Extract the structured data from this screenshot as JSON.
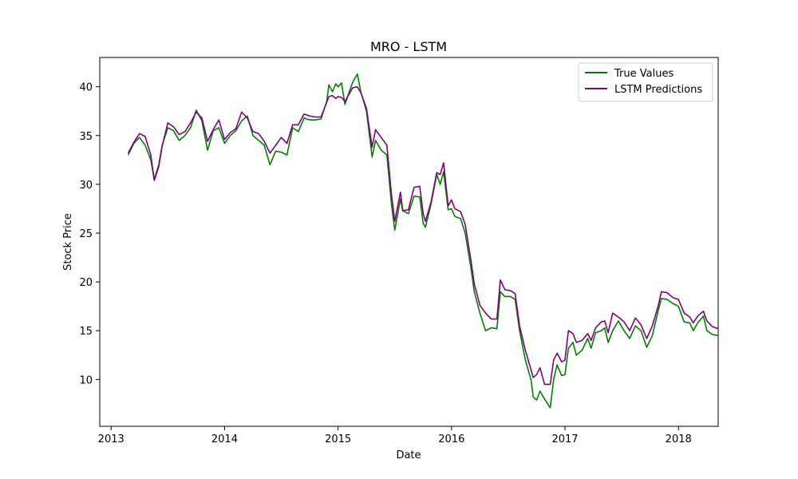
{
  "chart_data": {
    "type": "line",
    "title": "MRO - LSTM",
    "xlabel": "Date",
    "ylabel": "Stock Price",
    "xlim": [
      2012.9,
      2018.35
    ],
    "ylim": [
      5.2,
      43.0
    ],
    "x_ticks": [
      {
        "value": 2013,
        "label": "2013"
      },
      {
        "value": 2014,
        "label": "2014"
      },
      {
        "value": 2015,
        "label": "2015"
      },
      {
        "value": 2016,
        "label": "2016"
      },
      {
        "value": 2017,
        "label": "2017"
      },
      {
        "value": 2018,
        "label": "2018"
      }
    ],
    "y_ticks": [
      10,
      15,
      20,
      25,
      30,
      35,
      40
    ],
    "grid": false,
    "legend_position": "top-right",
    "series": [
      {
        "name": "True Values",
        "color": "#008000",
        "points": [
          [
            2013.15,
            33.0
          ],
          [
            2013.2,
            34.2
          ],
          [
            2013.25,
            34.8
          ],
          [
            2013.3,
            34.0
          ],
          [
            2013.35,
            32.5
          ],
          [
            2013.38,
            30.5
          ],
          [
            2013.42,
            32.0
          ],
          [
            2013.45,
            34.0
          ],
          [
            2013.5,
            35.8
          ],
          [
            2013.55,
            35.5
          ],
          [
            2013.6,
            34.5
          ],
          [
            2013.65,
            35.0
          ],
          [
            2013.7,
            35.8
          ],
          [
            2013.75,
            37.6
          ],
          [
            2013.8,
            36.5
          ],
          [
            2013.85,
            33.5
          ],
          [
            2013.9,
            35.5
          ],
          [
            2013.95,
            35.8
          ],
          [
            2014.0,
            34.2
          ],
          [
            2014.05,
            35.0
          ],
          [
            2014.1,
            35.5
          ],
          [
            2014.15,
            36.5
          ],
          [
            2014.2,
            37.0
          ],
          [
            2014.25,
            35.0
          ],
          [
            2014.3,
            34.5
          ],
          [
            2014.35,
            34.0
          ],
          [
            2014.4,
            32.0
          ],
          [
            2014.45,
            33.4
          ],
          [
            2014.5,
            33.3
          ],
          [
            2014.55,
            33.0
          ],
          [
            2014.6,
            35.8
          ],
          [
            2014.65,
            35.4
          ],
          [
            2014.7,
            36.8
          ],
          [
            2014.75,
            36.6
          ],
          [
            2014.8,
            36.6
          ],
          [
            2014.85,
            36.7
          ],
          [
            2014.9,
            38.5
          ],
          [
            2014.92,
            40.2
          ],
          [
            2014.95,
            39.5
          ],
          [
            2014.98,
            40.3
          ],
          [
            2015.0,
            40.0
          ],
          [
            2015.03,
            40.4
          ],
          [
            2015.06,
            38.2
          ],
          [
            2015.1,
            39.5
          ],
          [
            2015.13,
            40.5
          ],
          [
            2015.17,
            41.3
          ],
          [
            2015.2,
            39.5
          ],
          [
            2015.25,
            37.5
          ],
          [
            2015.3,
            32.8
          ],
          [
            2015.33,
            34.5
          ],
          [
            2015.38,
            33.5
          ],
          [
            2015.43,
            33.0
          ],
          [
            2015.47,
            28.0
          ],
          [
            2015.5,
            25.3
          ],
          [
            2015.55,
            28.5
          ],
          [
            2015.57,
            27.3
          ],
          [
            2015.62,
            27.0
          ],
          [
            2015.67,
            28.8
          ],
          [
            2015.72,
            28.7
          ],
          [
            2015.75,
            26.0
          ],
          [
            2015.77,
            25.6
          ],
          [
            2015.82,
            28.0
          ],
          [
            2015.87,
            31.0
          ],
          [
            2015.9,
            30.0
          ],
          [
            2015.93,
            31.3
          ],
          [
            2015.97,
            27.4
          ],
          [
            2016.0,
            27.5
          ],
          [
            2016.03,
            26.7
          ],
          [
            2016.08,
            26.5
          ],
          [
            2016.12,
            25.0
          ],
          [
            2016.17,
            21.5
          ],
          [
            2016.2,
            19.0
          ],
          [
            2016.25,
            16.8
          ],
          [
            2016.3,
            15.0
          ],
          [
            2016.35,
            15.3
          ],
          [
            2016.4,
            15.2
          ],
          [
            2016.43,
            19.0
          ],
          [
            2016.47,
            18.5
          ],
          [
            2016.52,
            18.5
          ],
          [
            2016.56,
            18.2
          ],
          [
            2016.6,
            15.0
          ],
          [
            2016.65,
            12.0
          ],
          [
            2016.7,
            10.0
          ],
          [
            2016.72,
            8.2
          ],
          [
            2016.75,
            7.9
          ],
          [
            2016.78,
            8.8
          ],
          [
            2016.82,
            8.0
          ],
          [
            2016.87,
            7.1
          ],
          [
            2016.9,
            10.0
          ],
          [
            2016.93,
            11.5
          ],
          [
            2016.97,
            10.4
          ],
          [
            2017.0,
            10.5
          ],
          [
            2017.03,
            13.2
          ],
          [
            2017.07,
            13.8
          ],
          [
            2017.1,
            12.5
          ],
          [
            2017.15,
            13.0
          ],
          [
            2017.2,
            14.2
          ],
          [
            2017.23,
            13.2
          ],
          [
            2017.27,
            14.8
          ],
          [
            2017.32,
            15.0
          ],
          [
            2017.35,
            15.3
          ],
          [
            2017.38,
            13.8
          ],
          [
            2017.42,
            15.0
          ],
          [
            2017.47,
            16.0
          ],
          [
            2017.52,
            15.0
          ],
          [
            2017.57,
            14.2
          ],
          [
            2017.62,
            15.5
          ],
          [
            2017.67,
            15.0
          ],
          [
            2017.72,
            13.3
          ],
          [
            2017.77,
            14.5
          ],
          [
            2017.82,
            17.0
          ],
          [
            2017.85,
            18.3
          ],
          [
            2017.9,
            18.2
          ],
          [
            2017.95,
            17.8
          ],
          [
            2018.0,
            17.5
          ],
          [
            2018.05,
            15.9
          ],
          [
            2018.1,
            15.8
          ],
          [
            2018.13,
            15.0
          ],
          [
            2018.17,
            15.8
          ],
          [
            2018.22,
            16.5
          ],
          [
            2018.25,
            15.0
          ],
          [
            2018.3,
            14.6
          ],
          [
            2018.35,
            14.5
          ]
        ]
      },
      {
        "name": "LSTM Predictions",
        "color": "#800080",
        "points": [
          [
            2013.15,
            33.2
          ],
          [
            2013.2,
            34.3
          ],
          [
            2013.25,
            35.2
          ],
          [
            2013.3,
            34.9
          ],
          [
            2013.35,
            33.0
          ],
          [
            2013.38,
            30.4
          ],
          [
            2013.42,
            31.8
          ],
          [
            2013.45,
            33.9
          ],
          [
            2013.5,
            36.3
          ],
          [
            2013.55,
            35.9
          ],
          [
            2013.6,
            35.1
          ],
          [
            2013.65,
            35.4
          ],
          [
            2013.7,
            36.3
          ],
          [
            2013.75,
            37.4
          ],
          [
            2013.8,
            36.8
          ],
          [
            2013.85,
            34.4
          ],
          [
            2013.9,
            35.6
          ],
          [
            2013.95,
            36.6
          ],
          [
            2014.0,
            34.6
          ],
          [
            2014.05,
            35.3
          ],
          [
            2014.1,
            35.7
          ],
          [
            2014.15,
            37.4
          ],
          [
            2014.2,
            36.8
          ],
          [
            2014.25,
            35.4
          ],
          [
            2014.3,
            35.2
          ],
          [
            2014.35,
            34.4
          ],
          [
            2014.4,
            33.2
          ],
          [
            2014.45,
            34.0
          ],
          [
            2014.5,
            34.8
          ],
          [
            2014.55,
            34.2
          ],
          [
            2014.6,
            36.1
          ],
          [
            2014.65,
            36.1
          ],
          [
            2014.7,
            37.2
          ],
          [
            2014.75,
            37.0
          ],
          [
            2014.8,
            36.9
          ],
          [
            2014.85,
            36.9
          ],
          [
            2014.9,
            38.4
          ],
          [
            2014.92,
            39.0
          ],
          [
            2014.95,
            39.1
          ],
          [
            2014.98,
            38.8
          ],
          [
            2015.0,
            39.0
          ],
          [
            2015.03,
            38.9
          ],
          [
            2015.06,
            38.5
          ],
          [
            2015.1,
            39.3
          ],
          [
            2015.13,
            39.9
          ],
          [
            2015.17,
            40.0
          ],
          [
            2015.2,
            39.4
          ],
          [
            2015.25,
            37.8
          ],
          [
            2015.3,
            33.8
          ],
          [
            2015.33,
            35.6
          ],
          [
            2015.38,
            34.8
          ],
          [
            2015.43,
            34.0
          ],
          [
            2015.47,
            29.0
          ],
          [
            2015.5,
            26.2
          ],
          [
            2015.55,
            29.2
          ],
          [
            2015.57,
            27.3
          ],
          [
            2015.62,
            27.4
          ],
          [
            2015.67,
            29.7
          ],
          [
            2015.72,
            29.8
          ],
          [
            2015.75,
            27.0
          ],
          [
            2015.77,
            26.2
          ],
          [
            2015.82,
            28.2
          ],
          [
            2015.87,
            31.2
          ],
          [
            2015.9,
            31.0
          ],
          [
            2015.93,
            32.2
          ],
          [
            2015.97,
            27.8
          ],
          [
            2016.0,
            28.4
          ],
          [
            2016.03,
            27.5
          ],
          [
            2016.08,
            27.2
          ],
          [
            2016.12,
            25.9
          ],
          [
            2016.17,
            22.3
          ],
          [
            2016.2,
            19.8
          ],
          [
            2016.25,
            17.6
          ],
          [
            2016.3,
            16.8
          ],
          [
            2016.35,
            16.2
          ],
          [
            2016.4,
            16.2
          ],
          [
            2016.43,
            20.2
          ],
          [
            2016.47,
            19.2
          ],
          [
            2016.52,
            19.1
          ],
          [
            2016.56,
            18.8
          ],
          [
            2016.6,
            15.5
          ],
          [
            2016.65,
            13.0
          ],
          [
            2016.7,
            11.0
          ],
          [
            2016.72,
            10.2
          ],
          [
            2016.75,
            10.5
          ],
          [
            2016.78,
            11.2
          ],
          [
            2016.82,
            9.5
          ],
          [
            2016.87,
            9.5
          ],
          [
            2016.9,
            12.0
          ],
          [
            2016.93,
            12.7
          ],
          [
            2016.97,
            11.8
          ],
          [
            2017.0,
            12.0
          ],
          [
            2017.03,
            15.0
          ],
          [
            2017.07,
            14.7
          ],
          [
            2017.1,
            13.8
          ],
          [
            2017.15,
            14.0
          ],
          [
            2017.2,
            14.7
          ],
          [
            2017.23,
            14.0
          ],
          [
            2017.27,
            15.3
          ],
          [
            2017.32,
            15.9
          ],
          [
            2017.35,
            16.0
          ],
          [
            2017.38,
            14.8
          ],
          [
            2017.42,
            16.8
          ],
          [
            2017.47,
            16.4
          ],
          [
            2017.52,
            15.9
          ],
          [
            2017.57,
            15.0
          ],
          [
            2017.62,
            16.3
          ],
          [
            2017.67,
            15.6
          ],
          [
            2017.72,
            14.2
          ],
          [
            2017.77,
            15.5
          ],
          [
            2017.82,
            17.5
          ],
          [
            2017.85,
            19.0
          ],
          [
            2017.9,
            18.9
          ],
          [
            2017.95,
            18.4
          ],
          [
            2018.0,
            18.2
          ],
          [
            2018.05,
            16.8
          ],
          [
            2018.1,
            16.4
          ],
          [
            2018.13,
            15.8
          ],
          [
            2018.17,
            16.5
          ],
          [
            2018.22,
            17.0
          ],
          [
            2018.25,
            16.0
          ],
          [
            2018.3,
            15.4
          ],
          [
            2018.35,
            15.2
          ]
        ]
      }
    ]
  }
}
